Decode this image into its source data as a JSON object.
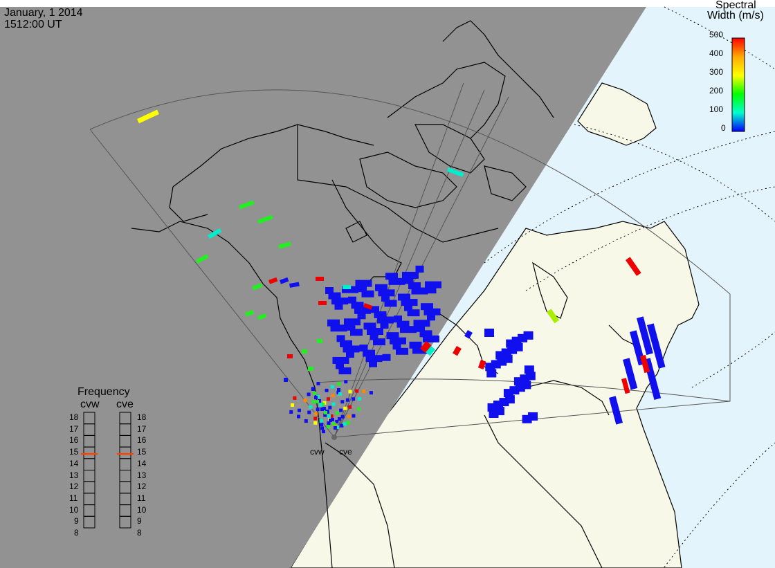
{
  "header": {
    "date": "January, 1 2014",
    "time": "1512:00 UT"
  },
  "legend": {
    "title_line1": "Spectral",
    "title_line2": "Width (m/s)",
    "ticks": [
      "500",
      "400",
      "300",
      "200",
      "100",
      "0"
    ],
    "scale_colors": [
      "#ff0000",
      "#ffaa00",
      "#ffff00",
      "#00ff00",
      "#00ffcc",
      "#0000ff"
    ]
  },
  "frequency_panel": {
    "title": "Frequency",
    "radars": [
      "cvw",
      "cve"
    ],
    "ticks": [
      "18",
      "17",
      "16",
      "15",
      "14",
      "13",
      "12",
      "11",
      "10",
      "9",
      "8"
    ],
    "selected": "15"
  },
  "radars": {
    "west": "cvw",
    "east": "cve"
  },
  "colors": {
    "night": "#929292",
    "land_day": "#f8f8e8",
    "ocean_day": "#e4f4fc",
    "coast": "#000000",
    "fov": "#555555"
  }
}
